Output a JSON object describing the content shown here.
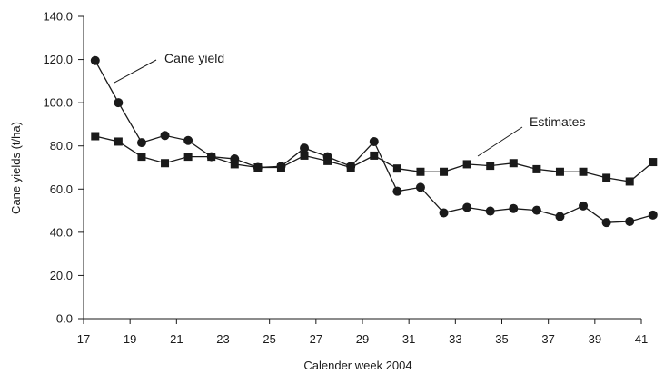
{
  "chart_data": {
    "type": "line",
    "xlabel": "Calender week 2004",
    "ylabel": "Cane yields (t/ha)",
    "xlim": [
      17,
      41
    ],
    "ylim": [
      0,
      140
    ],
    "x_ticks": [
      "17",
      "19",
      "21",
      "23",
      "25",
      "27",
      "29",
      "31",
      "33",
      "35",
      "37",
      "39",
      "41"
    ],
    "y_ticks": [
      "0.0",
      "20.0",
      "40.0",
      "60.0",
      "80.0",
      "100.0",
      "120.0",
      "140.0"
    ],
    "grid": false,
    "legend": "none",
    "annotations": [
      {
        "text": "Cane yield",
        "series": "Cane yield"
      },
      {
        "text": "Estimates",
        "series": "Estimates"
      }
    ],
    "series": [
      {
        "name": "Cane yield",
        "marker": "circle",
        "color": "#1a1a1a",
        "x": [
          17.5,
          18.5,
          19.5,
          20.5,
          21.5,
          22.5,
          23.5,
          24.5,
          25.5,
          26.5,
          27.5,
          28.5,
          29.5,
          30.5,
          31.5,
          32.5,
          33.5,
          34.5,
          35.5,
          36.5,
          37.5,
          38.5,
          39.5,
          40.5,
          41.5
        ],
        "values": [
          119.5,
          100.0,
          81.5,
          84.8,
          82.5,
          75.0,
          74.0,
          70.0,
          70.5,
          79.0,
          75.0,
          70.5,
          82.0,
          59.0,
          60.8,
          49.0,
          51.5,
          49.8,
          51.0,
          50.2,
          47.3,
          52.2,
          44.5,
          45.0,
          48.0
        ]
      },
      {
        "name": "Estimates",
        "marker": "square",
        "color": "#1a1a1a",
        "x": [
          17.5,
          18.5,
          19.5,
          20.5,
          21.5,
          22.5,
          23.5,
          24.5,
          25.5,
          26.5,
          27.5,
          28.5,
          29.5,
          30.5,
          31.5,
          32.5,
          33.5,
          34.5,
          35.5,
          36.5,
          37.5,
          38.5,
          39.5,
          40.5,
          41.5
        ],
        "values": [
          84.5,
          82.0,
          75.0,
          72.0,
          75.0,
          75.0,
          71.5,
          70.0,
          70.0,
          75.5,
          73.0,
          70.0,
          75.5,
          69.5,
          68.0,
          68.0,
          71.5,
          70.8,
          72.0,
          69.2,
          68.0,
          68.0,
          65.2,
          63.5,
          72.5
        ]
      }
    ]
  }
}
